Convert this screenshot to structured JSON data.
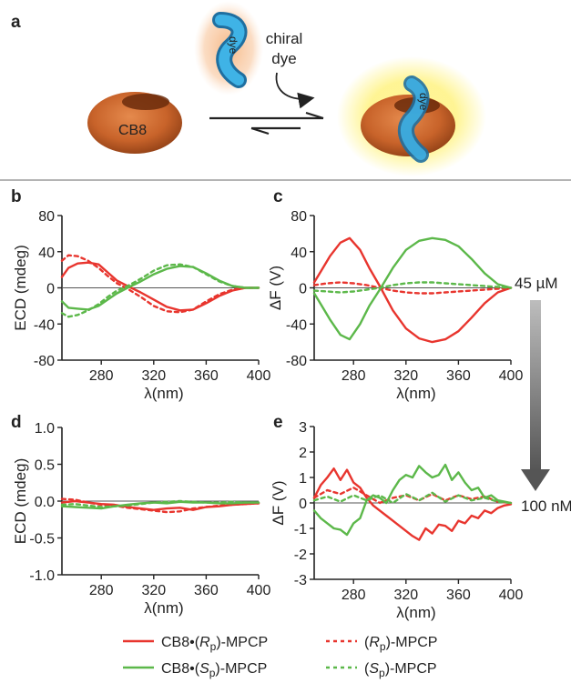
{
  "figure": {
    "panel_a": {
      "letter": "a",
      "host_label": "CB8",
      "guest_label": "dye",
      "chiral_dye_label_line1": "chiral",
      "chiral_dye_label_line2": "dye",
      "complex_label": "dye"
    },
    "annotations": {
      "conc_high": "45 µM",
      "conc_low": "100 nM"
    },
    "legend": {
      "entries": [
        {
          "text": "CB8•(Rp)-MPCP",
          "color": "#e8352e",
          "dash": "solid"
        },
        {
          "text": "(Rp)-MPCP",
          "color": "#e8352e",
          "dash": "dotted"
        },
        {
          "text": "CB8•(Sp)-MPCP",
          "color": "#5cb84a",
          "dash": "solid"
        },
        {
          "text": "(Sp)-MPCP",
          "color": "#5cb84a",
          "dash": "dotted"
        }
      ]
    },
    "colors": {
      "red": "#e8352e",
      "green": "#5cb84a",
      "host": "#c8632a"
    }
  },
  "chart_data": [
    {
      "panel": "b",
      "type": "line",
      "xlabel": "λ(nm)",
      "ylabel": "ECD (mdeg)",
      "xlim": [
        250,
        400
      ],
      "ylim": [
        -80,
        80
      ],
      "xticks": [
        280,
        320,
        360,
        400
      ],
      "yticks": [
        80,
        40,
        0,
        -40,
        -80
      ],
      "tick_labels_x": [
        "280",
        "320",
        "360",
        "400"
      ],
      "tick_labels_y": [
        "80",
        "40",
        "0",
        "-40",
        "-80"
      ],
      "series": [
        {
          "name": "CB8•(Rp)-MPCP",
          "color": "#e8352e",
          "dash": "solid",
          "x": [
            250,
            255,
            262,
            270,
            278,
            285,
            292,
            300,
            310,
            320,
            330,
            340,
            350,
            360,
            370,
            380,
            390,
            400
          ],
          "y": [
            12,
            22,
            27,
            28,
            26,
            17,
            8,
            2,
            -5,
            -13,
            -21,
            -25,
            -24,
            -17,
            -9,
            -3,
            0,
            0
          ]
        },
        {
          "name": "(Rp)-MPCP",
          "color": "#e8352e",
          "dash": "dotted",
          "x": [
            250,
            255,
            262,
            270,
            278,
            285,
            292,
            300,
            310,
            320,
            330,
            340,
            350,
            360,
            370,
            380,
            390,
            400
          ],
          "y": [
            30,
            36,
            35,
            30,
            22,
            13,
            5,
            -1,
            -10,
            -20,
            -26,
            -27,
            -24,
            -15,
            -7,
            -2,
            0,
            0
          ]
        },
        {
          "name": "CB8•(Sp)-MPCP",
          "color": "#5cb84a",
          "dash": "solid",
          "x": [
            250,
            255,
            262,
            270,
            278,
            285,
            292,
            300,
            310,
            320,
            330,
            340,
            350,
            360,
            370,
            380,
            390,
            400
          ],
          "y": [
            -15,
            -22,
            -23,
            -24,
            -20,
            -13,
            -6,
            0,
            7,
            15,
            21,
            24,
            23,
            16,
            8,
            2,
            0,
            0
          ]
        },
        {
          "name": "(Sp)-MPCP",
          "color": "#5cb84a",
          "dash": "dotted",
          "x": [
            250,
            255,
            262,
            270,
            278,
            285,
            292,
            300,
            310,
            320,
            330,
            340,
            350,
            360,
            370,
            380,
            390,
            400
          ],
          "y": [
            -28,
            -32,
            -30,
            -25,
            -18,
            -10,
            -3,
            2,
            10,
            19,
            25,
            26,
            23,
            15,
            7,
            2,
            0,
            0
          ]
        }
      ]
    },
    {
      "panel": "c",
      "type": "line",
      "xlabel": "λ(nm)",
      "ylabel": "ΔF (V)",
      "xlim": [
        250,
        400
      ],
      "ylim": [
        -80,
        80
      ],
      "xticks": [
        280,
        320,
        360,
        400
      ],
      "yticks": [
        80,
        40,
        0,
        -40,
        -80
      ],
      "tick_labels_x": [
        "280",
        "320",
        "360",
        "400"
      ],
      "tick_labels_y": [
        "80",
        "40",
        "0",
        "-40",
        "-80"
      ],
      "series": [
        {
          "name": "CB8•(Rp)-MPCP",
          "color": "#e8352e",
          "dash": "solid",
          "x": [
            250,
            255,
            262,
            270,
            277,
            285,
            292,
            300,
            310,
            320,
            330,
            340,
            350,
            360,
            370,
            380,
            390,
            400
          ],
          "y": [
            6,
            18,
            35,
            50,
            55,
            42,
            22,
            2,
            -25,
            -45,
            -56,
            -60,
            -57,
            -48,
            -33,
            -17,
            -5,
            0
          ]
        },
        {
          "name": "(Rp)-MPCP",
          "color": "#e8352e",
          "dash": "dotted",
          "x": [
            250,
            260,
            270,
            280,
            290,
            300,
            310,
            320,
            330,
            340,
            350,
            360,
            370,
            380,
            390,
            400
          ],
          "y": [
            3,
            5,
            6,
            5,
            3,
            0,
            -3,
            -5,
            -6,
            -6,
            -5,
            -4,
            -3,
            -2,
            -1,
            0
          ]
        },
        {
          "name": "CB8•(Sp)-MPCP",
          "color": "#5cb84a",
          "dash": "solid",
          "x": [
            250,
            255,
            262,
            270,
            277,
            285,
            292,
            300,
            310,
            320,
            330,
            340,
            350,
            360,
            370,
            380,
            390,
            400
          ],
          "y": [
            -6,
            -18,
            -35,
            -52,
            -57,
            -40,
            -20,
            -2,
            22,
            42,
            52,
            55,
            53,
            46,
            32,
            16,
            4,
            0
          ]
        },
        {
          "name": "(Sp)-MPCP",
          "color": "#5cb84a",
          "dash": "dotted",
          "x": [
            250,
            260,
            270,
            280,
            290,
            300,
            310,
            320,
            330,
            340,
            350,
            360,
            370,
            380,
            390,
            400
          ],
          "y": [
            -3,
            -4,
            -5,
            -4,
            -2,
            0,
            3,
            5,
            6,
            6,
            5,
            4,
            3,
            2,
            1,
            0
          ]
        }
      ]
    },
    {
      "panel": "d",
      "type": "line",
      "xlabel": "λ(nm)",
      "ylabel": "ECD (mdeg)",
      "xlim": [
        250,
        400
      ],
      "ylim": [
        -1.0,
        1.0
      ],
      "xticks": [
        280,
        320,
        360,
        400
      ],
      "yticks": [
        1.0,
        0.5,
        0.0,
        -0.5,
        -1.0
      ],
      "tick_labels_x": [
        "280",
        "320",
        "360",
        "400"
      ],
      "tick_labels_y": [
        "1.0",
        "0.5",
        "0.0",
        "-0.5",
        "-1.0"
      ],
      "series": [
        {
          "name": "CB8•(Rp)-MPCP",
          "color": "#e8352e",
          "dash": "solid",
          "x": [
            250,
            260,
            270,
            280,
            290,
            300,
            310,
            320,
            330,
            340,
            350,
            360,
            370,
            380,
            390,
            400
          ],
          "y": [
            -0.02,
            0.0,
            -0.02,
            -0.04,
            -0.05,
            -0.08,
            -0.1,
            -0.12,
            -0.1,
            -0.09,
            -0.12,
            -0.08,
            -0.07,
            -0.05,
            -0.04,
            -0.03
          ]
        },
        {
          "name": "(Rp)-MPCP",
          "color": "#e8352e",
          "dash": "dotted",
          "x": [
            250,
            260,
            270,
            280,
            290,
            300,
            310,
            320,
            330,
            340,
            350,
            360,
            370,
            380,
            390,
            400
          ],
          "y": [
            0.03,
            0.02,
            -0.02,
            -0.05,
            -0.06,
            -0.09,
            -0.11,
            -0.13,
            -0.15,
            -0.14,
            -0.1,
            -0.08,
            -0.06,
            -0.05,
            -0.04,
            -0.03
          ]
        },
        {
          "name": "CB8•(Sp)-MPCP",
          "color": "#5cb84a",
          "dash": "solid",
          "x": [
            250,
            260,
            270,
            280,
            290,
            300,
            310,
            320,
            330,
            340,
            350,
            360,
            370,
            380,
            390,
            400
          ],
          "y": [
            -0.07,
            -0.08,
            -0.09,
            -0.1,
            -0.07,
            -0.05,
            -0.03,
            -0.02,
            -0.03,
            -0.01,
            -0.02,
            -0.02,
            -0.03,
            -0.03,
            -0.02,
            -0.02
          ]
        },
        {
          "name": "(Sp)-MPCP",
          "color": "#5cb84a",
          "dash": "dotted",
          "x": [
            250,
            260,
            270,
            280,
            290,
            300,
            310,
            320,
            330,
            340,
            350,
            360,
            370,
            380,
            390,
            400
          ],
          "y": [
            -0.05,
            -0.04,
            -0.06,
            -0.08,
            -0.07,
            -0.06,
            -0.04,
            -0.02,
            -0.01,
            0.0,
            -0.01,
            -0.02,
            -0.02,
            -0.01,
            -0.02,
            -0.02
          ]
        }
      ]
    },
    {
      "panel": "e",
      "type": "line",
      "xlabel": "λ(nm)",
      "ylabel": "ΔF (V)",
      "xlim": [
        250,
        400
      ],
      "ylim": [
        -3,
        3
      ],
      "xticks": [
        280,
        320,
        360,
        400
      ],
      "yticks": [
        3,
        2,
        1,
        0,
        -1,
        -2,
        -3
      ],
      "tick_labels_x": [
        "280",
        "320",
        "360",
        "400"
      ],
      "tick_labels_y": [
        "3",
        "2",
        "1",
        "0",
        "-1",
        "-2",
        "-3"
      ],
      "series": [
        {
          "name": "CB8•(Rp)-MPCP",
          "color": "#e8352e",
          "dash": "solid",
          "x": [
            250,
            255,
            260,
            265,
            270,
            275,
            280,
            285,
            290,
            295,
            300,
            305,
            310,
            315,
            320,
            325,
            330,
            335,
            340,
            345,
            350,
            355,
            360,
            365,
            370,
            375,
            380,
            385,
            390,
            395,
            400
          ],
          "y": [
            0.2,
            0.7,
            1.0,
            1.35,
            0.9,
            1.3,
            0.8,
            0.6,
            0.2,
            -0.1,
            -0.3,
            -0.5,
            -0.7,
            -0.9,
            -1.1,
            -1.3,
            -1.45,
            -1.0,
            -1.2,
            -0.85,
            -0.9,
            -1.1,
            -0.7,
            -0.8,
            -0.5,
            -0.6,
            -0.3,
            -0.4,
            -0.2,
            -0.1,
            -0.05
          ]
        },
        {
          "name": "(Rp)-MPCP",
          "color": "#e8352e",
          "dash": "dotted",
          "x": [
            250,
            260,
            270,
            280,
            290,
            300,
            310,
            320,
            330,
            340,
            350,
            360,
            370,
            380,
            390,
            400
          ],
          "y": [
            0.2,
            0.5,
            0.35,
            0.6,
            0.3,
            0.0,
            0.2,
            0.3,
            0.1,
            0.35,
            0.1,
            0.3,
            0.15,
            0.25,
            0.05,
            0.0
          ]
        },
        {
          "name": "CB8•(Sp)-MPCP",
          "color": "#5cb84a",
          "dash": "solid",
          "x": [
            250,
            255,
            260,
            265,
            270,
            275,
            280,
            285,
            290,
            295,
            300,
            305,
            310,
            315,
            320,
            325,
            330,
            335,
            340,
            345,
            350,
            355,
            360,
            365,
            370,
            375,
            380,
            385,
            390,
            395,
            400
          ],
          "y": [
            -0.3,
            -0.6,
            -0.8,
            -1.0,
            -1.05,
            -1.25,
            -0.8,
            -0.6,
            0.1,
            0.3,
            0.2,
            0.0,
            0.5,
            0.9,
            1.1,
            1.0,
            1.45,
            1.2,
            1.0,
            1.1,
            1.5,
            0.9,
            1.2,
            0.8,
            0.5,
            0.6,
            0.2,
            0.3,
            0.1,
            0.05,
            0.0
          ]
        },
        {
          "name": "(Sp)-MPCP",
          "color": "#5cb84a",
          "dash": "dotted",
          "x": [
            250,
            260,
            270,
            280,
            290,
            300,
            310,
            320,
            330,
            340,
            350,
            360,
            370,
            380,
            390,
            400
          ],
          "y": [
            0.1,
            0.25,
            0.05,
            0.3,
            0.1,
            0.3,
            0.0,
            0.35,
            0.1,
            0.4,
            0.05,
            0.3,
            0.1,
            0.2,
            0.05,
            0.0
          ]
        }
      ]
    }
  ]
}
